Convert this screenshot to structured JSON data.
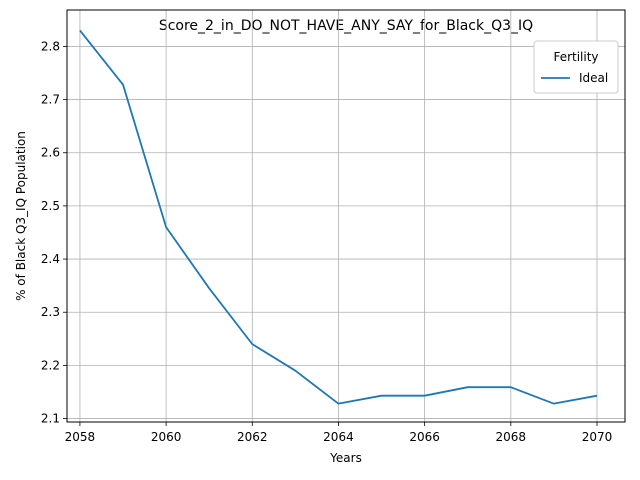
{
  "chart_data": {
    "type": "line",
    "title": "Score_2_in_DO_NOT_HAVE_ANY_SAY_for_Black_Q3_IQ",
    "xlabel": "Years",
    "ylabel": "% of Black Q3_IQ Population",
    "xlim": [
      2057.7,
      2070.65
    ],
    "ylim": [
      2.0935,
      2.8685
    ],
    "xticks": [
      2058,
      2060,
      2062,
      2064,
      2066,
      2068,
      2070
    ],
    "yticks": [
      2.1,
      2.2,
      2.3,
      2.4,
      2.5,
      2.6,
      2.7,
      2.8
    ],
    "grid": true,
    "legend": {
      "title": "Fertility",
      "placement": "top-right"
    },
    "x": [
      2058,
      2059,
      2060,
      2061,
      2062,
      2063,
      2064,
      2065,
      2066,
      2067,
      2068,
      2069,
      2070
    ],
    "series": [
      {
        "name": "Ideal",
        "color": "#1f77b4",
        "values": [
          2.83,
          2.728,
          2.46,
          2.345,
          2.24,
          2.19,
          2.128,
          2.143,
          2.143,
          2.159,
          2.159,
          2.128,
          2.143
        ]
      }
    ]
  }
}
